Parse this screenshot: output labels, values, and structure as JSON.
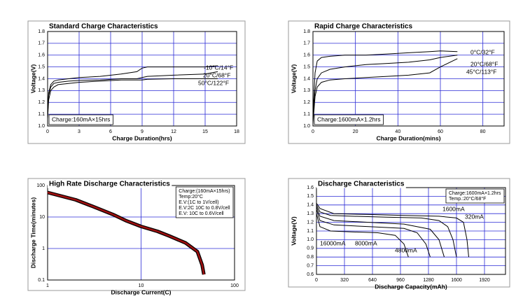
{
  "chart_data": [
    {
      "type": "line",
      "title": "Standard Charge Characteristics",
      "xlabel": "Charge Duration(hrs)",
      "ylabel": "Voltage(V)",
      "xlim": [
        0,
        18
      ],
      "xticks": [
        0,
        3,
        6,
        9,
        12,
        15,
        18
      ],
      "ylim": [
        1,
        1.8
      ],
      "yticks": [
        {
          "value": 1,
          "label": "1.0"
        },
        1.1,
        1.2,
        1.3,
        1.4,
        1.5,
        1.6,
        1.7,
        1.8
      ],
      "grid": true,
      "grid_color": "#2b2bd6",
      "note": [
        "Charge:160mA×15hrs"
      ],
      "note_corner": "lower left",
      "series": [
        {
          "name": "-10°C/14°F",
          "color": "#000000",
          "x": [
            0,
            0.1,
            0.3,
            0.6,
            1,
            2,
            3,
            5,
            7,
            8.5,
            9,
            9.5,
            12,
            15,
            16.2
          ],
          "values": [
            1.08,
            1.28,
            1.35,
            1.38,
            1.39,
            1.4,
            1.41,
            1.42,
            1.44,
            1.46,
            1.49,
            1.5,
            1.5,
            1.5,
            1.51
          ]
        },
        {
          "name": "20°C/68°F",
          "color": "#000000",
          "x": [
            0,
            0.1,
            0.3,
            0.6,
            1,
            2,
            3,
            5,
            7,
            8.5,
            9,
            9.5,
            12,
            15,
            16.2
          ],
          "values": [
            1.08,
            1.26,
            1.33,
            1.36,
            1.37,
            1.38,
            1.385,
            1.39,
            1.4,
            1.4,
            1.41,
            1.42,
            1.43,
            1.44,
            1.46
          ]
        },
        {
          "name": "50°C/122°F",
          "color": "#000000",
          "x": [
            0,
            0.1,
            0.3,
            0.6,
            1,
            2,
            3,
            5,
            7,
            8.5,
            9,
            9.5,
            12,
            15,
            16.2
          ],
          "values": [
            1.06,
            1.22,
            1.3,
            1.33,
            1.35,
            1.36,
            1.37,
            1.38,
            1.39,
            1.39,
            1.39,
            1.395,
            1.4,
            1.4,
            1.4
          ]
        }
      ]
    },
    {
      "type": "line",
      "title": "Rapid Charge Characteristics",
      "xlabel": "Charge Duration(mins)",
      "ylabel": "Voltage(V)",
      "xlim": [
        0,
        90
      ],
      "xticks": [
        0,
        20,
        40,
        60,
        80
      ],
      "ylim": [
        1,
        1.8
      ],
      "yticks": [
        {
          "value": 1,
          "label": "1.0"
        },
        1.1,
        1.2,
        1.3,
        1.4,
        1.5,
        1.6,
        1.7,
        1.8
      ],
      "grid": true,
      "grid_color": "#2b2bd6",
      "note": [
        "Charge:1600mA×1.2hrs"
      ],
      "note_corner": "lower left",
      "series": [
        {
          "name": "0°C/32°F",
          "color": "#000000",
          "x": [
            0,
            1,
            2,
            4,
            8,
            15,
            25,
            35,
            45,
            55,
            60,
            68
          ],
          "values": [
            1.1,
            1.45,
            1.55,
            1.58,
            1.59,
            1.6,
            1.6,
            1.61,
            1.62,
            1.63,
            1.635,
            1.63
          ]
        },
        {
          "name": "20°C/68°F",
          "color": "#000000",
          "x": [
            0,
            1,
            2,
            4,
            8,
            15,
            25,
            35,
            45,
            55,
            60,
            68
          ],
          "values": [
            1.05,
            1.3,
            1.4,
            1.45,
            1.48,
            1.5,
            1.52,
            1.53,
            1.54,
            1.56,
            1.58,
            1.6
          ]
        },
        {
          "name": "45°C/113°F",
          "color": "#000000",
          "x": [
            0,
            1,
            2,
            4,
            8,
            15,
            25,
            35,
            45,
            55,
            60,
            68
          ],
          "values": [
            1.02,
            1.25,
            1.33,
            1.37,
            1.39,
            1.4,
            1.41,
            1.42,
            1.43,
            1.45,
            1.5,
            1.57
          ]
        }
      ]
    },
    {
      "type": "line",
      "title": "High Rate Discharge Characteristics",
      "xlabel": "Discharge Current(C)",
      "ylabel": "Discharge Time(minutes)",
      "xscale": "log",
      "yscale": "log",
      "xlim": [
        1,
        100
      ],
      "xticks": [
        1,
        10,
        100
      ],
      "ylim": [
        0.1,
        100
      ],
      "yticks": [
        0.1,
        1,
        10,
        100
      ],
      "grid": true,
      "grid_color": "#2b2bd6",
      "note": [
        "Charge:(160mA×15hrs)",
        "Temp:20°C",
        "E.V:(1C to 1V/cell)",
        "E.V:2C   10C to 0.8V/cell",
        "E.V:   10C to 0.6V/cell"
      ],
      "note_corner": "upper right",
      "series": [
        {
          "color": "#a01010",
          "x": [
            1,
            2,
            3,
            5,
            7,
            10,
            15,
            20,
            30,
            40,
            45,
            47
          ],
          "values": [
            60,
            35,
            22,
            12,
            7.5,
            5,
            3.5,
            2.5,
            1.5,
            0.8,
            0.3,
            0.15
          ]
        }
      ]
    },
    {
      "type": "line",
      "title": "Discharge Characteristics",
      "xlabel": "Discharge Capacity(mAh)",
      "ylabel": "Voltage(V)",
      "xlim": [
        0,
        2160
      ],
      "xticks": [
        0,
        320,
        640,
        960,
        1280,
        1600,
        1920
      ],
      "ylim": [
        0.6,
        1.6
      ],
      "yticks": [
        0.6,
        0.7,
        0.8,
        0.9,
        {
          "value": 1,
          "label": "1.0"
        },
        1.1,
        1.2,
        1.3,
        1.4,
        1.5,
        1.6
      ],
      "grid": true,
      "grid_color": "#2b2bd6",
      "note": [
        "Charge:1600mA×1.2hrs",
        "Temp.:20°C/68°F"
      ],
      "note_corner": "upper right",
      "series": [
        {
          "name": "1600mA",
          "color": "#000000",
          "x": [
            0,
            40,
            160,
            400,
            800,
            1200,
            1400,
            1500,
            1560,
            1600
          ],
          "values": [
            1.4,
            1.32,
            1.28,
            1.27,
            1.26,
            1.25,
            1.22,
            1.15,
            1,
            0.8
          ]
        },
        {
          "name": "320mA",
          "color": "#000000",
          "x": [
            0,
            40,
            200,
            600,
            1000,
            1400,
            1600,
            1680,
            1720,
            1740
          ],
          "values": [
            1.42,
            1.36,
            1.3,
            1.29,
            1.28,
            1.27,
            1.25,
            1.2,
            1,
            0.8
          ]
        },
        {
          "name": "16000mA",
          "color": "#000000",
          "x": [
            0,
            40,
            160,
            400,
            700,
            900,
            1000,
            1050
          ],
          "values": [
            1.3,
            1.15,
            1.1,
            1.09,
            1.08,
            1.05,
            0.95,
            0.8
          ]
        },
        {
          "name": "8000mA",
          "color": "#000000",
          "x": [
            0,
            40,
            200,
            600,
            1000,
            1150,
            1250,
            1300
          ],
          "values": [
            1.35,
            1.22,
            1.17,
            1.15,
            1.13,
            1.08,
            0.95,
            0.8
          ]
        },
        {
          "name": "4800mA",
          "color": "#000000",
          "x": [
            0,
            40,
            200,
            600,
            1000,
            1300,
            1400,
            1460
          ],
          "values": [
            1.38,
            1.27,
            1.22,
            1.2,
            1.18,
            1.12,
            1,
            0.8
          ]
        }
      ]
    }
  ]
}
